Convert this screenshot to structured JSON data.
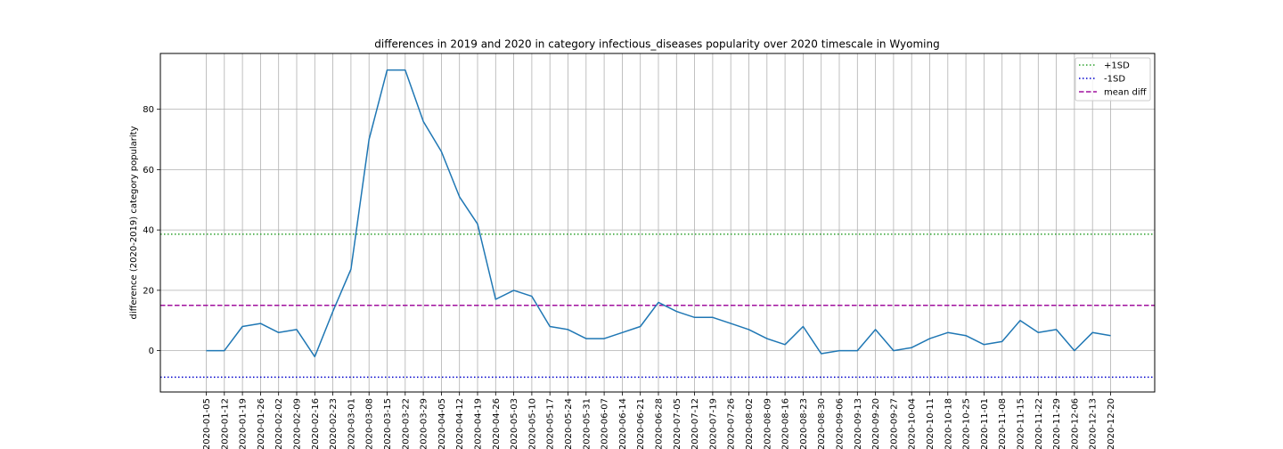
{
  "chart_data": {
    "type": "line",
    "title": "differences in 2019 and 2020 in category infectious_diseases popularity over 2020 timescale in Wyoming",
    "xlabel": "",
    "ylabel": "difference (2020-2019) category popularity",
    "ylim": [
      -13.7,
      98.5
    ],
    "yticks": [
      0,
      20,
      40,
      60,
      80
    ],
    "grid": true,
    "legend_position": "top-right",
    "x": [
      "2020-01-05",
      "2020-01-12",
      "2020-01-19",
      "2020-01-26",
      "2020-02-02",
      "2020-02-09",
      "2020-02-16",
      "2020-02-23",
      "2020-03-01",
      "2020-03-08",
      "2020-03-15",
      "2020-03-22",
      "2020-03-29",
      "2020-04-05",
      "2020-04-12",
      "2020-04-19",
      "2020-04-26",
      "2020-05-03",
      "2020-05-10",
      "2020-05-17",
      "2020-05-24",
      "2020-05-31",
      "2020-06-07",
      "2020-06-14",
      "2020-06-21",
      "2020-06-28",
      "2020-07-05",
      "2020-07-12",
      "2020-07-19",
      "2020-07-26",
      "2020-08-02",
      "2020-08-09",
      "2020-08-16",
      "2020-08-23",
      "2020-08-30",
      "2020-09-06",
      "2020-09-13",
      "2020-09-20",
      "2020-09-27",
      "2020-10-04",
      "2020-10-11",
      "2020-10-18",
      "2020-10-25",
      "2020-11-01",
      "2020-11-08",
      "2020-11-15",
      "2020-11-22",
      "2020-11-29",
      "2020-12-06",
      "2020-12-13",
      "2020-12-20"
    ],
    "series": [
      {
        "values": [
          0,
          0,
          8,
          9,
          6,
          7,
          -2,
          13,
          27,
          70,
          93,
          93,
          76,
          66,
          51,
          42,
          17,
          20,
          18,
          8,
          7,
          4,
          4,
          6,
          8,
          16,
          13,
          11,
          11,
          9,
          7,
          4,
          2,
          8,
          -1,
          0,
          0,
          7,
          0,
          1,
          4,
          6,
          5,
          2,
          3,
          10,
          6,
          7,
          0,
          6,
          5
        ],
        "color": "#1f77b4"
      }
    ],
    "reference_lines": [
      {
        "name": "+1SD",
        "value": 38.6,
        "color": "#2ca02c",
        "style": "dotted"
      },
      {
        "name": "-1SD",
        "value": -8.8,
        "color": "#0000cc",
        "style": "dotted"
      },
      {
        "name": "mean diff",
        "value": 15.0,
        "color": "#a0109e",
        "style": "dashed"
      }
    ]
  }
}
